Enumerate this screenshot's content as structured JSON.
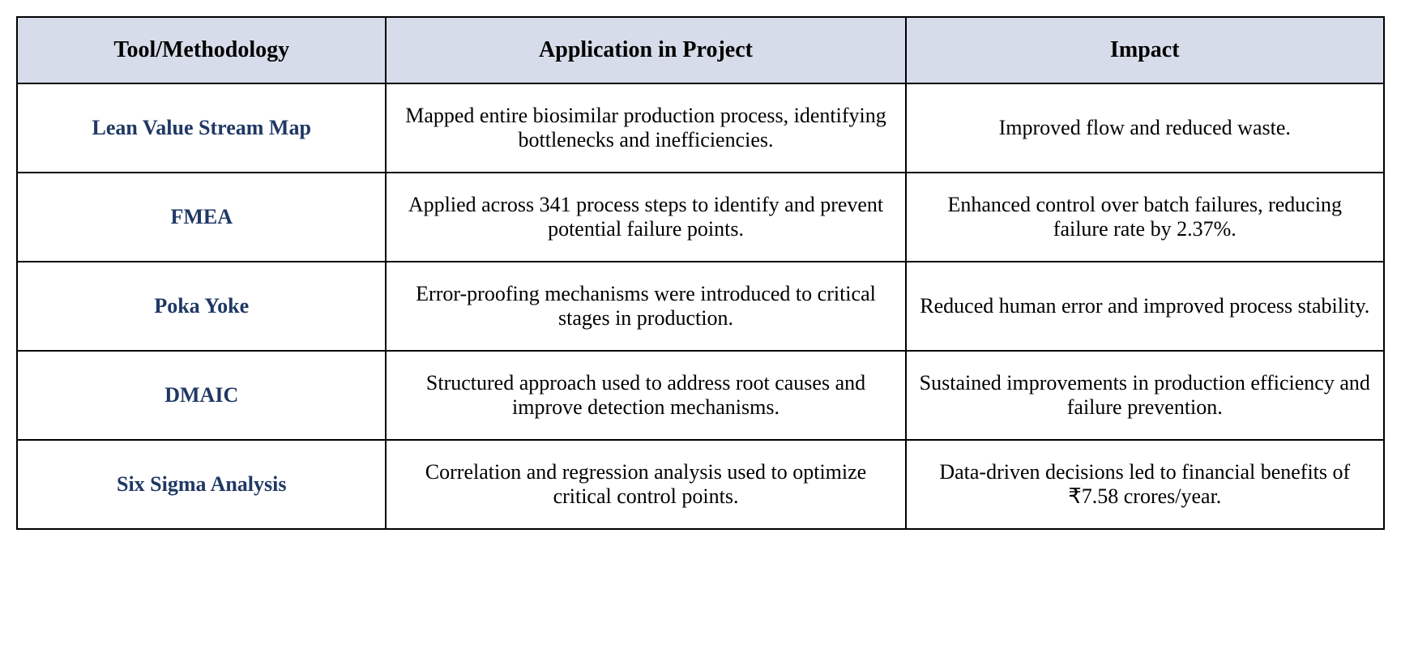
{
  "table": {
    "type": "table",
    "header_bg": "#d6dce9",
    "header_text_color": "#000000",
    "tool_text_color": "#1f3864",
    "body_text_color": "#000000",
    "border_color": "#000000",
    "header_fontsize": 28,
    "body_fontsize": 26,
    "columns": [
      {
        "label": "Tool/Methodology",
        "width_pct": 27
      },
      {
        "label": "Application in Project",
        "width_pct": 38
      },
      {
        "label": "Impact",
        "width_pct": 35
      }
    ],
    "rows": [
      {
        "tool": "Lean Value Stream Map",
        "application": "Mapped entire biosimilar production process, identifying bottlenecks and inefficiencies.",
        "impact": "Improved flow and reduced waste."
      },
      {
        "tool": "FMEA",
        "application": "Applied across 341 process steps to identify and prevent potential failure points.",
        "impact": "Enhanced control over batch failures, reducing failure rate by 2.37%."
      },
      {
        "tool": "Poka Yoke",
        "application": "Error-proofing mechanisms were introduced to critical stages in production.",
        "impact": "Reduced human error and improved process stability."
      },
      {
        "tool": "DMAIC",
        "application": "Structured approach used to address root causes and improve detection mechanisms.",
        "impact": "Sustained improvements in production efficiency and failure prevention."
      },
      {
        "tool": "Six Sigma Analysis",
        "application": "Correlation and regression analysis used to optimize critical control points.",
        "impact": "Data-driven decisions led to financial benefits of ₹7.58 crores/year."
      }
    ]
  }
}
